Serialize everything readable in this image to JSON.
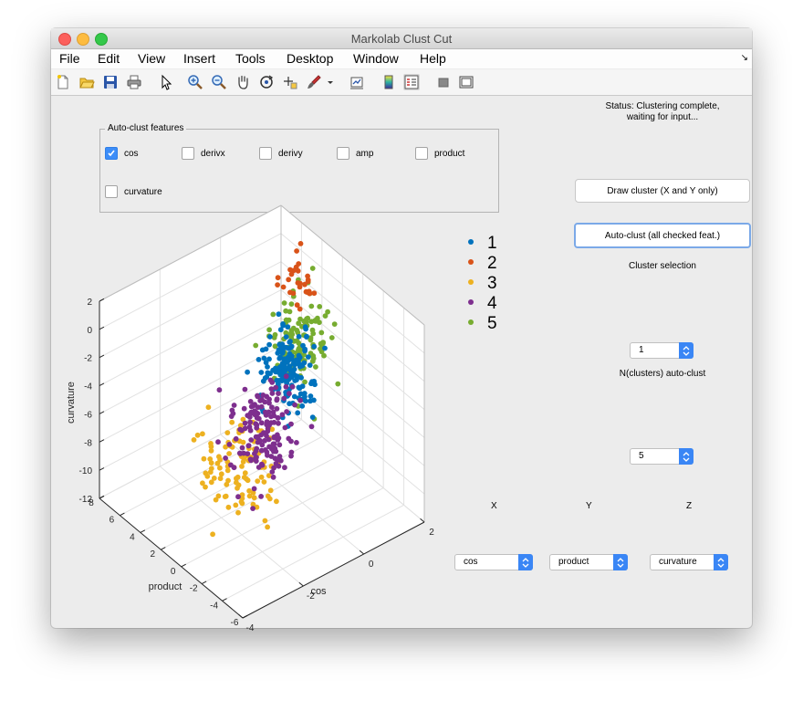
{
  "window": {
    "title": "Markolab Clust Cut"
  },
  "menu": [
    "File",
    "Edit",
    "View",
    "Insert",
    "Tools",
    "Desktop",
    "Window",
    "Help"
  ],
  "menu_arrow": "↘",
  "toolbar": [
    "new-file-icon",
    "open-folder-icon",
    "save-icon",
    "print-icon",
    "pointer-icon",
    "zoom-in-icon",
    "zoom-out-icon",
    "pan-hand-icon",
    "rotate-3d-icon",
    "data-cursor-icon",
    "brush-icon",
    "brush-dropdown-icon",
    "link-plot-icon",
    "colorbar-icon",
    "legend-icon",
    "hide-plot-tools-icon",
    "show-plot-tools-icon"
  ],
  "status": {
    "line1": "Status:  Clustering complete,",
    "line2": "waiting for input..."
  },
  "features": {
    "title": "Auto-clust features",
    "items": [
      {
        "label": "cos",
        "checked": true
      },
      {
        "label": "derivx",
        "checked": false
      },
      {
        "label": "derivy",
        "checked": false
      },
      {
        "label": "amp",
        "checked": false
      },
      {
        "label": "product",
        "checked": false
      },
      {
        "label": "curvature",
        "checked": false
      }
    ]
  },
  "buttons": {
    "draw": "Draw cluster (X and Y only)",
    "auto": "Auto-clust (all checked feat.)"
  },
  "cluster_selection": {
    "label": "Cluster selection",
    "value": "1"
  },
  "nclusters": {
    "label": "N(clusters) auto-clust",
    "value": "5"
  },
  "axes_sel": {
    "x": {
      "label": "X",
      "value": "cos"
    },
    "y": {
      "label": "Y",
      "value": "product"
    },
    "z": {
      "label": "Z",
      "value": "curvature"
    }
  },
  "colors": {
    "c1": "#0072bd",
    "c2": "#d95319",
    "c3": "#edb120",
    "c4": "#7e2f8e",
    "c5": "#77ac30",
    "accent": "#3a86f5"
  },
  "chart_data": {
    "type": "scatter",
    "dimensions": 3,
    "xlabel": "cos",
    "ylabel": "product",
    "zlabel": "curvature",
    "xlim": [
      -4,
      2
    ],
    "ylim": [
      -6,
      8
    ],
    "zlim": [
      -12,
      2
    ],
    "xticks": [
      "-4",
      "-2",
      "0",
      "2"
    ],
    "yticks": [
      "-6",
      "-4",
      "-2",
      "0",
      "2",
      "4",
      "6",
      "8"
    ],
    "zticks": [
      "2",
      "0",
      "-2",
      "-4",
      "-6",
      "-8",
      "-10",
      "-12"
    ],
    "grid": true,
    "legend_position": "top-right",
    "series": [
      {
        "name": "1",
        "color": "#0072bd",
        "centroid": [
          0.3,
          2.5,
          -4.5
        ],
        "approx_points": 320
      },
      {
        "name": "2",
        "color": "#d95319",
        "centroid": [
          1.3,
          4.5,
          -0.5
        ],
        "approx_points": 60
      },
      {
        "name": "3",
        "color": "#edb120",
        "centroid": [
          -1.8,
          1.0,
          -8.0
        ],
        "approx_points": 220
      },
      {
        "name": "4",
        "color": "#7e2f8e",
        "centroid": [
          -1.0,
          1.0,
          -6.5
        ],
        "approx_points": 320
      },
      {
        "name": "5",
        "color": "#77ac30",
        "centroid": [
          1.0,
          3.0,
          -3.5
        ],
        "approx_points": 240
      }
    ]
  }
}
